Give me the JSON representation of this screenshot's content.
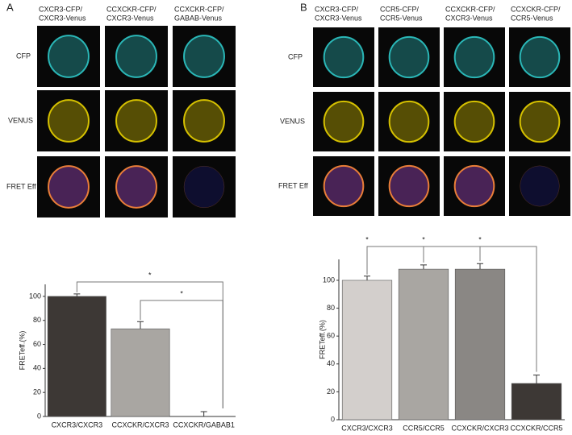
{
  "panels": [
    {
      "label": "A",
      "columns": [
        [
          "CXCR3-CFP/",
          "CXCR3-Venus"
        ],
        [
          "CCXCKR-CFP/",
          "CXCR3-Venus"
        ],
        [
          "CCXCKR-CFP/",
          "GABAB-Venus"
        ]
      ],
      "rows": [
        "CFP",
        "VENUS",
        "FRET Eff"
      ]
    },
    {
      "label": "B",
      "columns": [
        [
          "CXCR3-CFP/",
          "CXCR3-Venus"
        ],
        [
          "CCR5-CFP/",
          "CCR5-Venus"
        ],
        [
          "CCXCKR-CFP/",
          "CXCR3-Venus"
        ],
        [
          "CCXCKR-CFP/",
          "CCR5-Venus"
        ]
      ],
      "rows": [
        "CFP",
        "VENUS",
        "FRET Eff"
      ]
    }
  ],
  "chart_data": [
    {
      "type": "bar",
      "y_label": "FRETeff.(%)",
      "categories": [
        "CXCR3/CXCR3",
        "CCXCKR/CXCR3",
        "CCXCKR/GABAB1"
      ],
      "values": [
        100,
        73,
        0
      ],
      "errors": [
        2,
        6,
        4
      ],
      "colors": [
        "#3d3835",
        "#a9a6a2",
        "#ffffff"
      ],
      "ylim": [
        0,
        110
      ],
      "yticks": [
        0,
        20,
        40,
        60,
        80,
        100
      ],
      "annotations": [
        "*",
        "*"
      ]
    },
    {
      "type": "bar",
      "y_label": "FRETeff.(%)",
      "categories": [
        "CXCR3/CXCR3",
        "CCR5/CCR5",
        "CCXCKR/CXCR3",
        "CCXCKR/CCR5"
      ],
      "values": [
        100,
        108,
        108,
        26
      ],
      "errors": [
        3,
        3,
        4,
        6
      ],
      "colors": [
        "#d3cfcc",
        "#a9a6a2",
        "#8a8784",
        "#3d3835"
      ],
      "ylim": [
        0,
        115
      ],
      "yticks": [
        0,
        20,
        40,
        60,
        80,
        100
      ],
      "annotations": [
        "*",
        "*",
        "*"
      ]
    }
  ]
}
